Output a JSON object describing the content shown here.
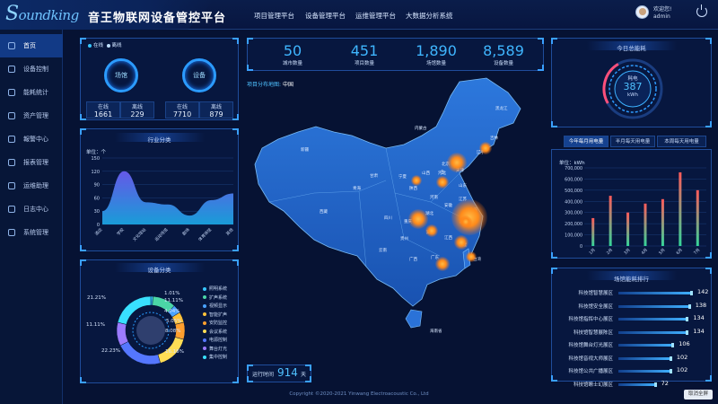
{
  "header": {
    "logo_text_s": "S",
    "logo_text_rest": "oundking",
    "title": "音王物联网设备管控平台",
    "nav": [
      "项目管理平台",
      "设备管理平台",
      "运维管理平台",
      "大数据分析系统"
    ],
    "welcome": "欢迎您!",
    "username": "admin"
  },
  "sidebar": {
    "items": [
      {
        "label": "首页",
        "active": true
      },
      {
        "label": "设备控制"
      },
      {
        "label": "能耗统计"
      },
      {
        "label": "资产管理"
      },
      {
        "label": "報警中心"
      },
      {
        "label": "报表管理"
      },
      {
        "label": "运维助理"
      },
      {
        "label": "日志中心"
      },
      {
        "label": "系统管理"
      }
    ]
  },
  "status_panel": {
    "legend_online": "在线",
    "legend_offline": "离线",
    "rings": [
      {
        "label": "场馆",
        "online_label": "在线",
        "online": "1661",
        "offline_label": "离线",
        "offline": "229"
      },
      {
        "label": "设备",
        "online_label": "在线",
        "online": "7710",
        "offline_label": "离线",
        "offline": "879"
      }
    ]
  },
  "industry_panel": {
    "title": "行业分类",
    "unit": "单位：个",
    "chart_data": {
      "type": "area",
      "categories": [
        "酒店",
        "学校",
        "文化馆站",
        "运动场馆",
        "剧场",
        "体育场馆",
        "其他"
      ],
      "y_ticks": [
        0,
        30,
        60,
        90,
        120,
        150
      ],
      "ylim": [
        0,
        150
      ],
      "values": [
        30,
        120,
        50,
        45,
        20,
        55,
        70
      ]
    }
  },
  "device_panel": {
    "title": "设备分类",
    "chart_data": {
      "type": "pie",
      "labels": [
        "照明系统",
        "扩声系统",
        "视频显示",
        "智能扩声",
        "安防监控",
        "会议系统",
        "电源控制",
        "舞台灯光",
        "集中控制"
      ],
      "values": [
        1.01,
        11.11,
        4.04,
        5.05,
        8.08,
        16.16,
        22.23,
        11.11,
        21.21
      ],
      "value_labels": [
        "1.01%",
        "11.11%",
        "4.04%",
        "5.05%",
        "8.08%",
        "16.16%",
        "22.23%",
        "11.11%",
        "21.21%"
      ],
      "colors": [
        "#36c6ff",
        "#4bd6a6",
        "#4aa3ff",
        "#ffc23a",
        "#ff9f2e",
        "#ffdd55",
        "#5577ff",
        "#9b7bff",
        "#39e0ff"
      ]
    }
  },
  "top_stats": [
    {
      "value": "50",
      "label": "城市数量"
    },
    {
      "value": "451",
      "label": "项目数量"
    },
    {
      "value": "1,890",
      "label": "场馆数量"
    },
    {
      "value": "8,589",
      "label": "设备数量"
    }
  ],
  "map": {
    "title": "项目分布地图:",
    "region": "中国",
    "labels": [
      "内蒙古",
      "黑龙江",
      "吉林",
      "辽宁",
      "新疆",
      "甘肃",
      "宁夏",
      "山西",
      "河北",
      "北京",
      "天津",
      "山东",
      "青海",
      "陕西",
      "河南",
      "江苏",
      "安徽",
      "湖北",
      "上海",
      "西藏",
      "四川",
      "重庆",
      "浙江",
      "贵州",
      "湖南",
      "江西",
      "福建",
      "云南",
      "广西",
      "广东",
      "台湾",
      "海南省"
    ],
    "cluster_number": "3",
    "runtime_label": "运行时间",
    "runtime_value": "914",
    "runtime_unit": "天"
  },
  "energy_today": {
    "title": "今日总能耗",
    "gauge_label": "耗电",
    "value": "387",
    "unit": "kWh"
  },
  "energy_tabs": [
    "今年每月用电量",
    "半月每天用电量",
    "本周每天用电量"
  ],
  "energy_chart": {
    "unit": "单位：kWh",
    "chart_data": {
      "type": "bar",
      "categories": [
        "1月",
        "2月",
        "3月",
        "4月",
        "5月",
        "6月",
        "7月"
      ],
      "values": [
        250000,
        450000,
        300000,
        380000,
        420000,
        660000,
        500000
      ],
      "y_ticks": [
        "700,000",
        "600,000",
        "500,000",
        "400,000",
        "300,000",
        "200,000",
        "100,000",
        "0"
      ],
      "ylim": [
        0,
        700000
      ]
    }
  },
  "ranking": {
    "title": "场馆能耗排行",
    "items": [
      {
        "name": "科技馆智慧展区",
        "value": 142
      },
      {
        "name": "科技馆安全展区",
        "value": 138
      },
      {
        "name": "科技馆指挥中心展区",
        "value": 134
      },
      {
        "name": "科技馆智慧展陈区",
        "value": 134
      },
      {
        "name": "科技馆舞台灯光展区",
        "value": 106
      },
      {
        "name": "科技馆音视大师展区",
        "value": 102
      },
      {
        "name": "科技馆公共广播展区",
        "value": 102
      },
      {
        "name": "科技馆瞭士幻展区",
        "value": 72
      }
    ]
  },
  "footer": "Copyright ©2020-2021 Yinwang Electroacoustic Co., Ltd",
  "exit_fullscreen": "取消全屏"
}
